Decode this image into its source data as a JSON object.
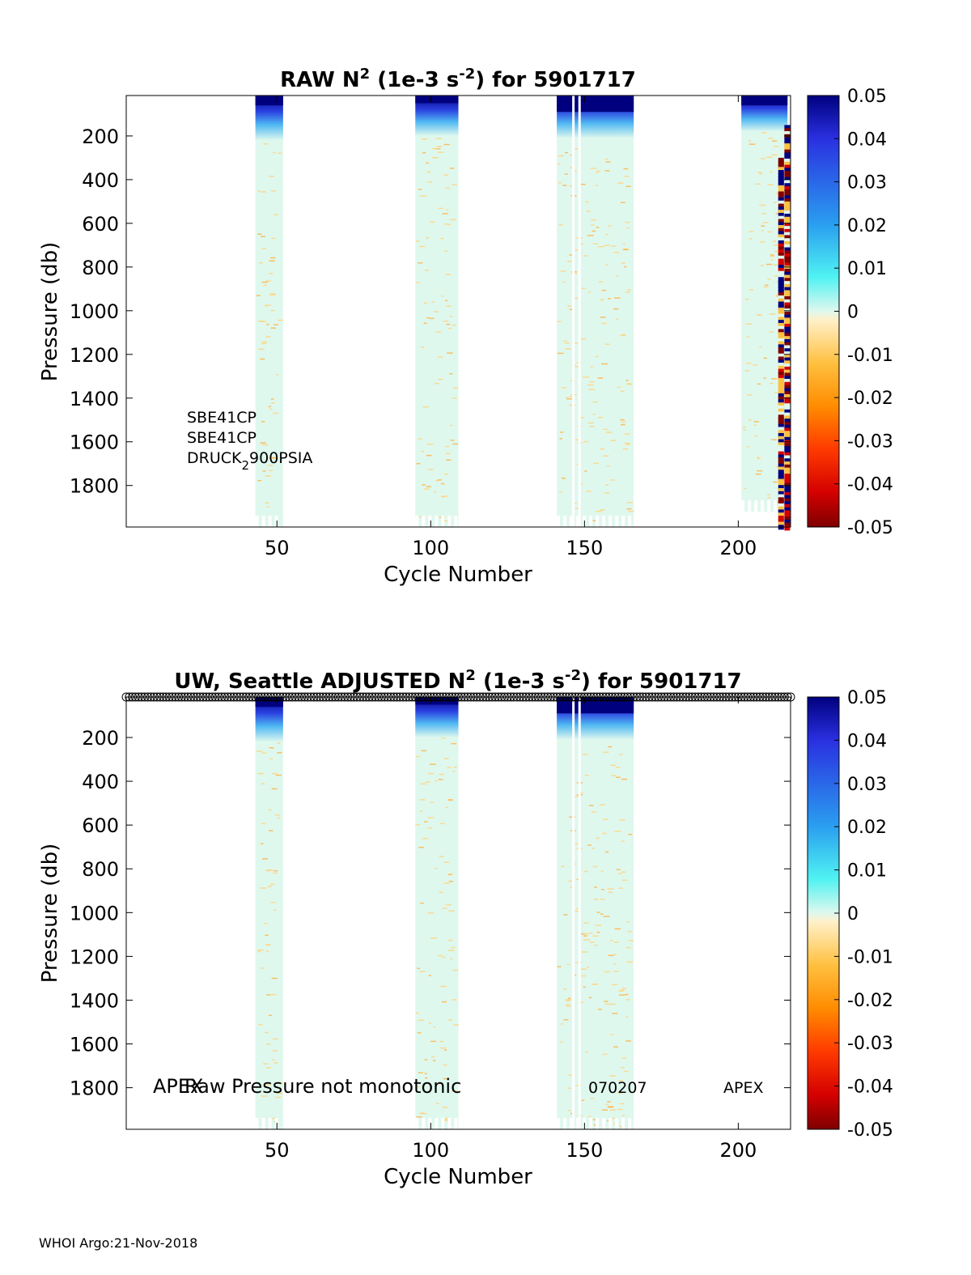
{
  "footer": {
    "credit": "WHOI Argo:21-Nov-2018"
  },
  "colormap": {
    "ticks": [
      "0.05",
      "0.04",
      "0.03",
      "0.02",
      "0.01",
      "0",
      "-0.01",
      "-0.02",
      "-0.03",
      "-0.04",
      "-0.05"
    ],
    "range": [
      -0.05,
      0.05
    ],
    "colors": [
      "#7f0000",
      "#d40000",
      "#ff3a00",
      "#ff8c00",
      "#ffc040",
      "#fff0c8",
      "#dff8ee",
      "#4ff2f2",
      "#2a9ff0",
      "#2a30e0",
      "#00007f"
    ]
  },
  "chart_data": [
    {
      "type": "heatmap",
      "title": {
        "prefix": "RAW N",
        "sup1": "2",
        "mid": " (1e-3 s",
        "sup2": "-2",
        "suffix": ") for 5901717"
      },
      "xlabel": "Cycle Number",
      "ylabel": "Pressure (db)",
      "xlim": [
        1,
        217
      ],
      "ylim": [
        1990,
        15
      ],
      "xticks": [
        {
          "value": 50,
          "label": "50"
        },
        {
          "value": 100,
          "label": "100"
        },
        {
          "value": 150,
          "label": "150"
        },
        {
          "value": 200,
          "label": "200"
        }
      ],
      "yticks": [
        {
          "value": 200,
          "label": "200"
        },
        {
          "value": 400,
          "label": "400"
        },
        {
          "value": 600,
          "label": "600"
        },
        {
          "value": 800,
          "label": "800"
        },
        {
          "value": 1000,
          "label": "1000"
        },
        {
          "value": 1200,
          "label": "1200"
        },
        {
          "value": 1400,
          "label": "1400"
        },
        {
          "value": 1600,
          "label": "1600"
        },
        {
          "value": 1800,
          "label": "1800"
        }
      ],
      "annotations": {
        "line1": "SBE41CP",
        "line2": "SBE41CP",
        "line3a": "DRUCK",
        "line3sub": "2",
        "line3b": "900PSIA"
      },
      "blocks": [
        {
          "x0": 43,
          "x1": 52,
          "p_top": 15,
          "p_bottom": 1990,
          "surface_value": 0.05,
          "surface_depth": 60,
          "gradient_depth": 220
        },
        {
          "x0": 95,
          "x1": 109,
          "p_top": 15,
          "p_bottom": 1990,
          "surface_value": 0.05,
          "surface_depth": 50,
          "gradient_depth": 200
        },
        {
          "x0": 141,
          "x1": 166,
          "p_top": 15,
          "p_bottom": 1990,
          "surface_value": 0.05,
          "surface_depth": 90,
          "gradient_depth": 210
        },
        {
          "x0": 201,
          "x1": 216,
          "p_top": 15,
          "p_bottom": 1920,
          "surface_value": 0.05,
          "surface_depth": 60,
          "gradient_depth": 180
        }
      ]
    },
    {
      "type": "heatmap",
      "title": {
        "prefix": "UW, Seattle  ADJUSTED N",
        "sup1": "2",
        "mid": " (1e-3 s",
        "sup2": "-2",
        "suffix": ") for 5901717"
      },
      "xlabel": "Cycle Number",
      "ylabel": "Pressure (db)",
      "xlim": [
        1,
        217
      ],
      "ylim": [
        1990,
        15
      ],
      "xticks": [
        {
          "value": 50,
          "label": "50"
        },
        {
          "value": 100,
          "label": "100"
        },
        {
          "value": 150,
          "label": "150"
        },
        {
          "value": 200,
          "label": "200"
        }
      ],
      "yticks": [
        {
          "value": 200,
          "label": "200"
        },
        {
          "value": 400,
          "label": "400"
        },
        {
          "value": 600,
          "label": "600"
        },
        {
          "value": 800,
          "label": "800"
        },
        {
          "value": 1000,
          "label": "1000"
        },
        {
          "value": 1200,
          "label": "1200"
        },
        {
          "value": 1400,
          "label": "1400"
        },
        {
          "value": 1600,
          "label": "1600"
        },
        {
          "value": 1800,
          "label": "1800"
        }
      ],
      "annotations": {
        "a1": "APEX",
        "a2": "Raw Pressure not monotonic",
        "a3": "070207",
        "a4": "APEX"
      },
      "blocks": [
        {
          "x0": 43,
          "x1": 52,
          "p_top": 15,
          "p_bottom": 1990,
          "surface_value": 0.05,
          "surface_depth": 60,
          "gradient_depth": 220
        },
        {
          "x0": 95,
          "x1": 109,
          "p_top": 15,
          "p_bottom": 1990,
          "surface_value": 0.05,
          "surface_depth": 50,
          "gradient_depth": 200
        },
        {
          "x0": 141,
          "x1": 166,
          "p_top": 15,
          "p_bottom": 1990,
          "surface_value": 0.05,
          "surface_depth": 90,
          "gradient_depth": 210
        }
      ],
      "qc_markers": {
        "cycles": [
          1,
          217
        ],
        "pressure": 15
      }
    }
  ]
}
